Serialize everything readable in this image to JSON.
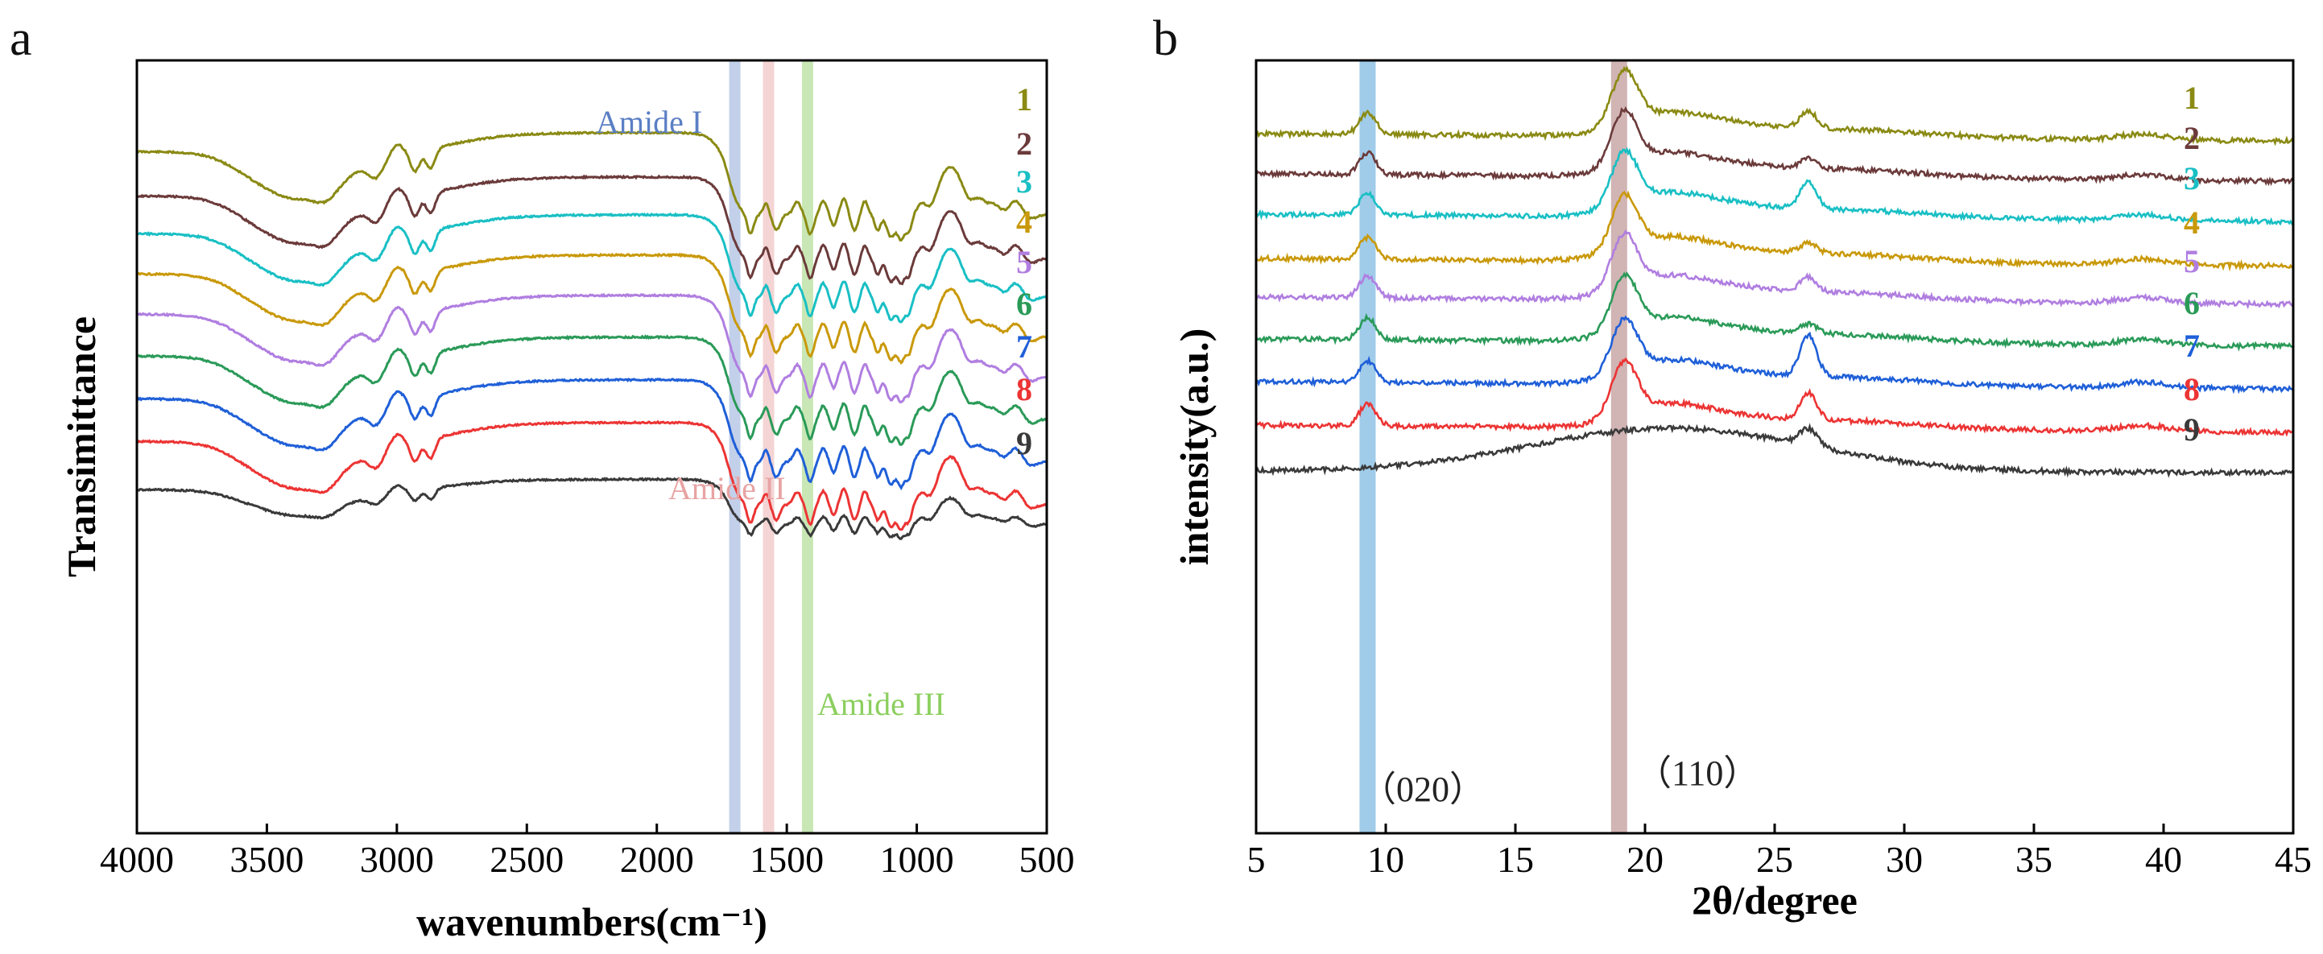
{
  "chart_data": [
    {
      "type": "line",
      "panel": "a",
      "xlabel": "wavenumbers(cm⁻¹)",
      "ylabel": "Transimittance",
      "xlim": [
        4000,
        500
      ],
      "x_reversed": true,
      "x_ticks": [
        "4000",
        "3500",
        "3000",
        "2500",
        "2000",
        "1500",
        "1000",
        "500"
      ],
      "grid": false,
      "legend": "inline labels at right end of each trace",
      "bands": [
        {
          "label": "Amide I",
          "x": 1700,
          "color": "#b8c8e6"
        },
        {
          "label": "Amide II",
          "x": 1570,
          "color": "#f2cccc"
        },
        {
          "label": "Amide III",
          "x": 1420,
          "color": "#bfe3a8"
        }
      ],
      "series": [
        {
          "name": "1",
          "color": "#8a8a14"
        },
        {
          "name": "2",
          "color": "#6b3a3a"
        },
        {
          "name": "3",
          "color": "#19bfc4"
        },
        {
          "name": "4",
          "color": "#c9990a"
        },
        {
          "name": "5",
          "color": "#b07ee0"
        },
        {
          "name": "6",
          "color": "#2a9a58"
        },
        {
          "name": "7",
          "color": "#1f5fd8"
        },
        {
          "name": "8",
          "color": "#ec3434"
        },
        {
          "name": "9",
          "color": "#3a3a3a"
        }
      ],
      "fingerprint_points_cm-1": [
        3480,
        3290,
        3080,
        2930,
        2870,
        1700,
        1630,
        1540,
        1450,
        1380,
        1320,
        1240,
        1150,
        1100,
        1060,
        1030,
        890,
        850,
        700,
        600
      ]
    },
    {
      "type": "line",
      "panel": "b",
      "xlabel": "2θ/degree",
      "ylabel": "intensity(a.u.)",
      "xlim": [
        5,
        45
      ],
      "x_ticks": [
        "5",
        "10",
        "15",
        "20",
        "25",
        "30",
        "35",
        "40",
        "45"
      ],
      "grid": false,
      "legend": "inline labels at right end of each trace",
      "bands": [
        {
          "label": "(020)",
          "x": 9.3,
          "color": "#8fc3e6"
        },
        {
          "label": "(110)",
          "x": 19.0,
          "color": "#c9a7a7"
        }
      ],
      "peaks_deg": [
        9.3,
        19.2,
        26.3
      ],
      "series": [
        {
          "name": "1",
          "color": "#8a8a14"
        },
        {
          "name": "2",
          "color": "#6b3a3a"
        },
        {
          "name": "3",
          "color": "#19bfc4"
        },
        {
          "name": "4",
          "color": "#c9990a"
        },
        {
          "name": "5",
          "color": "#b07ee0"
        },
        {
          "name": "6",
          "color": "#2a9a58"
        },
        {
          "name": "7",
          "color": "#1f5fd8"
        },
        {
          "name": "8",
          "color": "#ec3434"
        },
        {
          "name": "9",
          "color": "#3a3a3a"
        }
      ]
    }
  ],
  "labels": {
    "panel_a": "a",
    "panel_b": "b",
    "amide1": "Amide I",
    "amide2": "Amide II",
    "amide3": "Amide III",
    "peak020": "（020）",
    "peak110": "（110）"
  }
}
